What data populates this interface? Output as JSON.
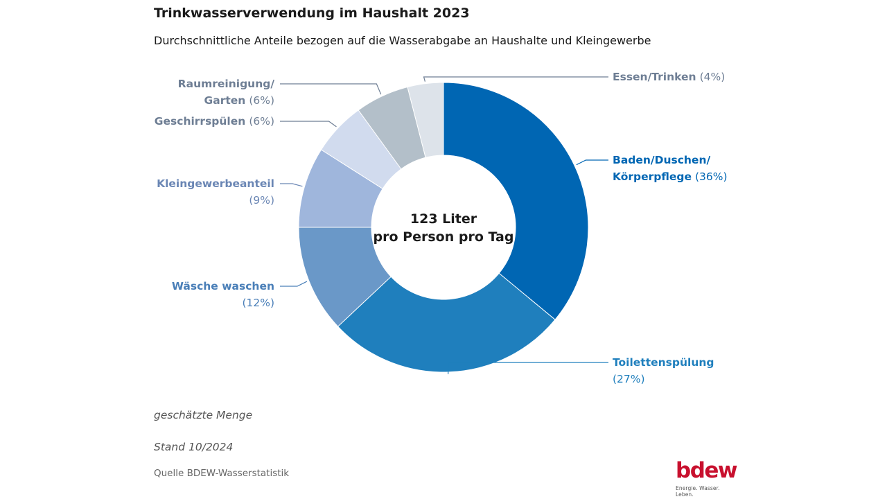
{
  "title": "Trinkwasserverwendung im Haushalt 2023",
  "subtitle": "Durchschnittliche Anteile bezogen auf die Wasserabgabe an Haushalte und Kleingewerbe",
  "center": {
    "line1": "123 Liter",
    "line2": "pro Person pro Tag"
  },
  "notes": {
    "estimate": "geschätzte Menge",
    "stand": "Stand 10/2024"
  },
  "source": "Quelle BDEW-Wasserstatistik",
  "logo": {
    "word": "bdew",
    "tagline": "Energie. Wasser. Leben."
  },
  "chart_data": {
    "type": "pie",
    "donut": true,
    "title": "Trinkwasserverwendung im Haushalt 2023",
    "subtitle": "Durchschnittliche Anteile bezogen auf die Wasserabgabe an Haushalte und Kleingewerbe",
    "unit": "%",
    "slices": [
      {
        "label_lines": [
          "Baden/Duschen/",
          "Körperpflege"
        ],
        "value": 36,
        "value_text": "(36%)",
        "color": "#0066b3",
        "label_color": "#0066b3"
      },
      {
        "label_lines": [
          "Toilettenspülung"
        ],
        "value": 27,
        "value_text": "(27%)",
        "color": "#1f7fbd",
        "label_color": "#1f7fbd"
      },
      {
        "label_lines": [
          "Wäsche waschen"
        ],
        "value": 12,
        "value_text": "(12%)",
        "color": "#6a98c8",
        "label_color": "#4a7fb8"
      },
      {
        "label_lines": [
          "Kleingewerbeanteil"
        ],
        "value": 9,
        "value_text": "(9%)",
        "color": "#9fb6dc",
        "label_color": "#6a86b4"
      },
      {
        "label_lines": [
          "Geschirrspülen"
        ],
        "value": 6,
        "value_text": "(6%)",
        "color": "#d1dbee",
        "label_color": "#6e7e94"
      },
      {
        "label_lines": [
          "Raumreinigung/",
          "Garten"
        ],
        "value": 6,
        "value_text": "(6%)",
        "color": "#b3bfc9",
        "label_color": "#6e7e94"
      },
      {
        "label_lines": [
          "Essen/Trinken"
        ],
        "value": 4,
        "value_text": "(4%)",
        "color": "#dde3ea",
        "label_color": "#6e7e94"
      }
    ]
  }
}
